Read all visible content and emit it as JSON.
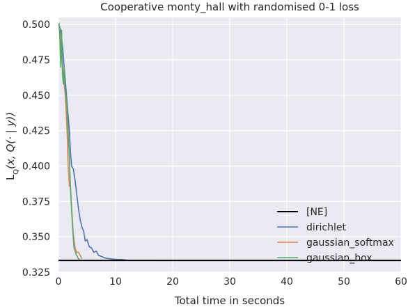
{
  "chart_data": {
    "type": "line",
    "title": "Cooperative monty_hall with randomised 0-1 loss",
    "xlabel": "Total time in seconds",
    "ylabel_main": "L",
    "ylabel_sub": "Q",
    "ylabel_rest": "(x, Q(· | y))",
    "xlim": [
      0,
      60
    ],
    "ylim": [
      0.325,
      0.505
    ],
    "xticks": [
      0,
      10,
      20,
      30,
      40,
      50,
      60
    ],
    "xtick_labels": [
      "0",
      "10",
      "20",
      "30",
      "40",
      "50",
      "60"
    ],
    "yticks": [
      0.325,
      0.35,
      0.375,
      0.4,
      0.425,
      0.45,
      0.475,
      0.5
    ],
    "ytick_labels": [
      "0.325",
      "0.350",
      "0.375",
      "0.400",
      "0.425",
      "0.450",
      "0.475",
      "0.500"
    ],
    "grid": true,
    "legend_position": "lower-right",
    "background": "#eaeaf2",
    "reference_line": {
      "name": "[NE]",
      "y": 0.3333,
      "color": "#000000"
    },
    "series": [
      {
        "name": "dirichlet",
        "color": "#4c72b0",
        "points": [
          [
            0.1,
            0.5
          ],
          [
            0.4,
            0.495
          ],
          [
            0.7,
            0.485
          ],
          [
            1.0,
            0.47
          ],
          [
            1.3,
            0.455
          ],
          [
            1.6,
            0.44
          ],
          [
            1.9,
            0.425
          ],
          [
            2.1,
            0.41
          ],
          [
            2.3,
            0.4
          ],
          [
            2.6,
            0.398
          ],
          [
            2.9,
            0.39
          ],
          [
            3.2,
            0.38
          ],
          [
            3.5,
            0.37
          ],
          [
            3.8,
            0.362
          ],
          [
            4.1,
            0.357
          ],
          [
            4.4,
            0.354
          ],
          [
            4.7,
            0.347
          ],
          [
            5.0,
            0.348
          ],
          [
            5.4,
            0.343
          ],
          [
            5.8,
            0.342
          ],
          [
            6.2,
            0.339
          ],
          [
            6.6,
            0.34
          ],
          [
            7.0,
            0.337
          ],
          [
            7.6,
            0.336
          ],
          [
            8.2,
            0.335
          ],
          [
            9.0,
            0.3345
          ],
          [
            10.0,
            0.334
          ],
          [
            11.0,
            0.334
          ],
          [
            12.0,
            0.3335
          ],
          [
            14.0,
            0.3334
          ],
          [
            20.0,
            0.3333
          ],
          [
            60.0,
            0.3333
          ]
        ]
      },
      {
        "name": "gaussian_softmax",
        "color": "#dd8452",
        "points": [
          [
            0.1,
            0.5
          ],
          [
            0.3,
            0.49
          ],
          [
            0.6,
            0.475
          ],
          [
            0.9,
            0.462
          ],
          [
            1.2,
            0.45
          ],
          [
            1.5,
            0.425
          ],
          [
            1.7,
            0.4
          ],
          [
            1.9,
            0.386
          ],
          [
            2.1,
            0.385
          ],
          [
            2.3,
            0.37
          ],
          [
            2.6,
            0.352
          ],
          [
            2.9,
            0.342
          ],
          [
            3.2,
            0.339
          ],
          [
            3.5,
            0.339
          ],
          [
            3.8,
            0.337
          ],
          [
            4.1,
            0.3345
          ]
        ]
      },
      {
        "name": "gaussian_box",
        "color": "#55a868",
        "points": [
          [
            0.1,
            0.501
          ],
          [
            0.25,
            0.49
          ],
          [
            0.4,
            0.47
          ],
          [
            0.55,
            0.496
          ],
          [
            0.7,
            0.465
          ],
          [
            0.85,
            0.458
          ],
          [
            1.0,
            0.47
          ],
          [
            1.15,
            0.455
          ],
          [
            1.3,
            0.45
          ],
          [
            1.5,
            0.44
          ],
          [
            1.7,
            0.425
          ],
          [
            1.9,
            0.405
          ],
          [
            2.1,
            0.385
          ],
          [
            2.3,
            0.368
          ],
          [
            2.5,
            0.355
          ],
          [
            2.7,
            0.343
          ],
          [
            2.9,
            0.34
          ],
          [
            3.1,
            0.3375
          ],
          [
            3.3,
            0.336
          ],
          [
            3.5,
            0.3345
          ],
          [
            3.8,
            0.3335
          ]
        ]
      }
    ]
  }
}
